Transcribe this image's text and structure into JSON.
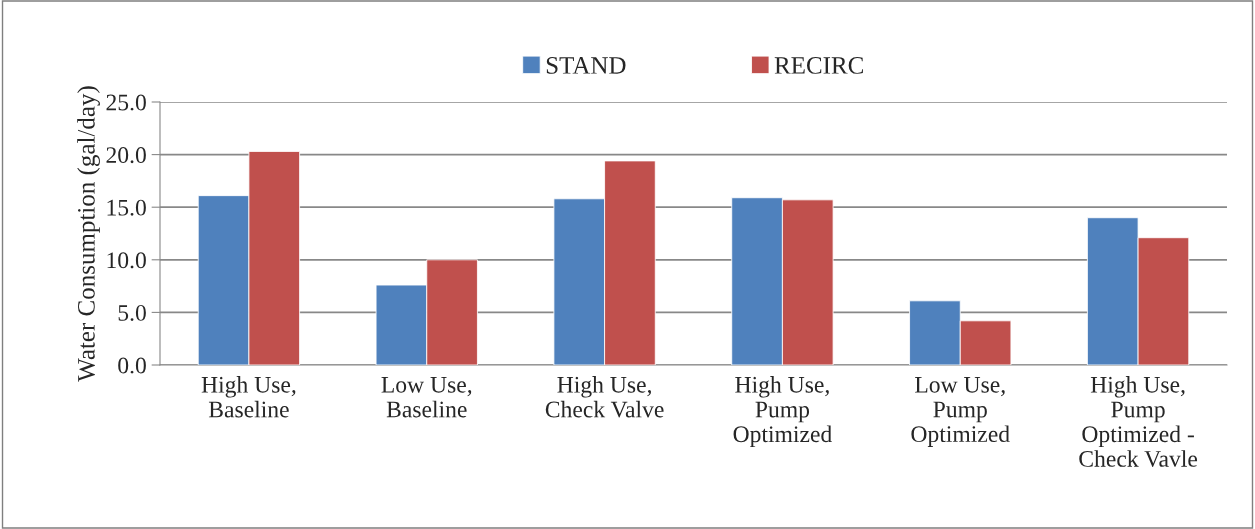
{
  "chart_data": {
    "type": "bar",
    "ylabel": "Water Consumption (gal/day)",
    "categories": [
      "High Use,\nBaseline",
      "Low Use,\nBaseline",
      "High Use,\nCheck Valve",
      "High Use,\nPump\nOptimized",
      "Low Use,\nPump\nOptimized",
      "High Use,\nPump\nOptimized -\nCheck Vavle"
    ],
    "series": [
      {
        "name": "STAND",
        "color": "#4f81bd",
        "values": [
          16.1,
          7.6,
          15.8,
          15.9,
          6.1,
          14.0
        ]
      },
      {
        "name": "RECIRC",
        "color": "#c0504d",
        "values": [
          20.3,
          10.0,
          19.4,
          15.7,
          4.2,
          12.1
        ]
      }
    ],
    "ylim": [
      0,
      25
    ],
    "yticks": [
      {
        "value": 0,
        "label": "0.0"
      },
      {
        "value": 5,
        "label": "5.0"
      },
      {
        "value": 10,
        "label": "10.0"
      },
      {
        "value": 15,
        "label": "15.0"
      },
      {
        "value": 20,
        "label": "20.0"
      },
      {
        "value": 25,
        "label": "25.0"
      }
    ],
    "grid": "y",
    "legend": "top"
  }
}
